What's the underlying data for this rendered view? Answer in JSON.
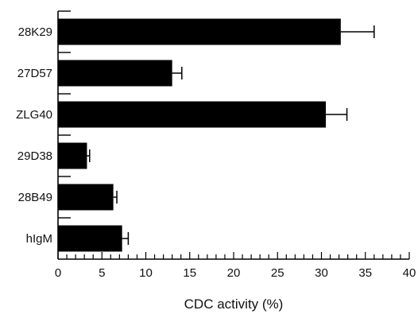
{
  "chart_data": {
    "type": "bar",
    "orientation": "horizontal",
    "categories": [
      "28K29",
      "27D57",
      "ZLG40",
      "29D38",
      "28B49",
      "hIgM"
    ],
    "values": [
      32.2,
      13.0,
      30.5,
      3.3,
      6.3,
      7.3
    ],
    "errors": [
      3.8,
      1.1,
      2.4,
      0.3,
      0.4,
      0.7
    ],
    "xlabel": "CDC activity (%)",
    "ylabel": "",
    "xlim": [
      0,
      40
    ],
    "xticks": [
      "0",
      "5",
      "10",
      "15",
      "20",
      "25",
      "30",
      "35",
      "40"
    ],
    "minor_tick_step": 1,
    "grid": false,
    "legend": "none",
    "bar_color": "#000000",
    "axis_color": "#000000"
  }
}
